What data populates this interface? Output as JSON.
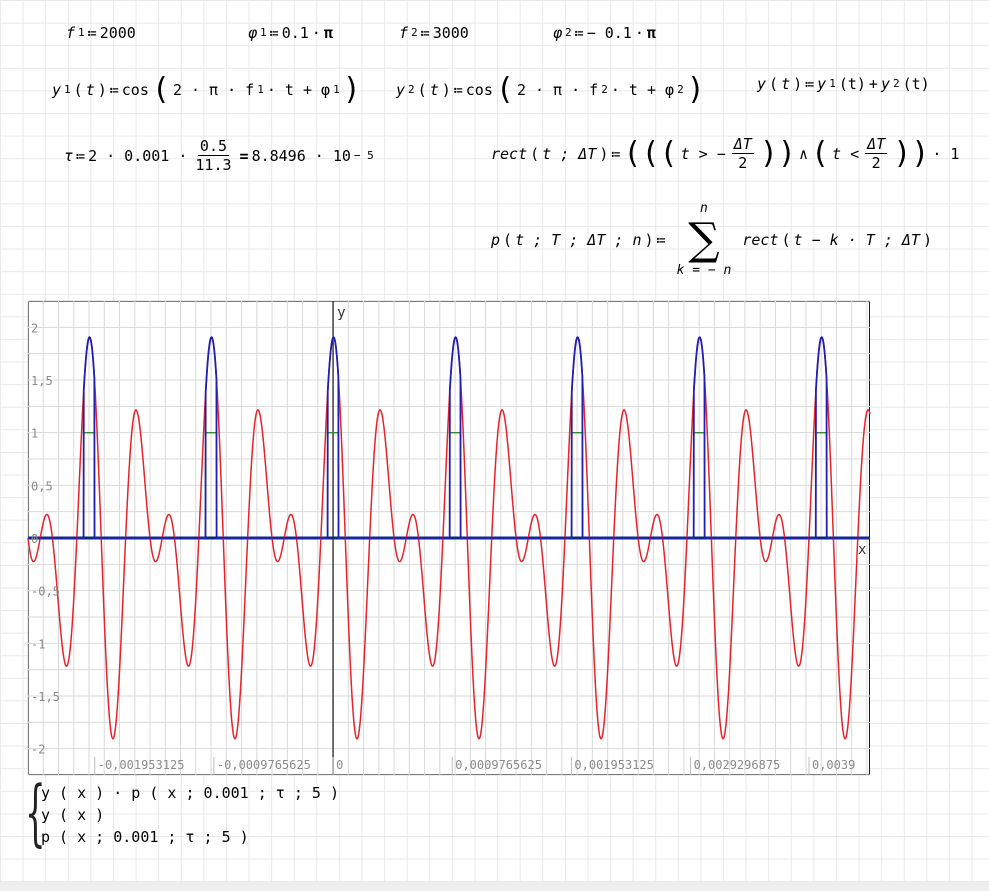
{
  "definitions": {
    "f1": {
      "name": "f",
      "sub": "1",
      "op": "≔",
      "value": "2000"
    },
    "phi1": {
      "name": "φ",
      "sub": "1",
      "op": "≔",
      "value": "0.1",
      "dot": "·",
      "pi": "π"
    },
    "f2": {
      "name": "f",
      "sub": "2",
      "op": "≔",
      "value": "3000"
    },
    "phi2": {
      "name": "φ",
      "sub": "2",
      "op": "≔",
      "value": "− 0.1",
      "dot": "·",
      "pi": "π"
    },
    "y1": {
      "lhs": "y",
      "sub": "1",
      "arg": "t",
      "op": "≔",
      "fn": "cos",
      "body": "2 · π · f",
      "fsub": "1",
      "mid": " · t + φ",
      "psub": "1"
    },
    "y2": {
      "lhs": "y",
      "sub": "2",
      "arg": "t",
      "op": "≔",
      "fn": "cos",
      "body": "2 · π · f",
      "fsub": "2",
      "mid": " · t + φ",
      "psub": "2"
    },
    "y": {
      "lhs": "y",
      "arg": "t",
      "op": "≔",
      "t1": "y",
      "t1sub": "1",
      "plus": "+",
      "t2": "y",
      "t2sub": "2"
    },
    "tau": {
      "name": "τ",
      "op": "≔",
      "prefix": "2 · 0.001 ·",
      "num": "0.5",
      "den": "11.3",
      "eq": "=",
      "result": "8.8496 · 10",
      "exp": "− 5"
    },
    "rect": {
      "name": "rect",
      "args": "t ; ΔT",
      "op": "≔",
      "gt": "t > −",
      "lt": "t <",
      "num": "ΔT",
      "den": "2",
      "and": "∧",
      "tail": "· 1"
    },
    "pulse": {
      "name": "p",
      "args": "t ; T ; ΔT ; n",
      "op": "≔",
      "upper": "n",
      "lower": "k = − n",
      "term": "rect",
      "termargs": "t − k · T ; ΔT"
    }
  },
  "plot": {
    "x_axis_name": "x",
    "y_axis_name": "y",
    "y_ticks": [
      "2",
      "1,5",
      "1",
      "0,5",
      "0",
      "-0,5",
      "-1",
      "-1,5",
      "-2"
    ],
    "x_ticks": [
      "-0,001953125",
      "-0,0009765625",
      "0",
      "0,0009765625",
      "0,001953125",
      "0,0029296875",
      "0,0039"
    ]
  },
  "legend": {
    "items": [
      "y ( x ) · p ( x ; 0.001 ; τ ; 5 )",
      "y ( x )",
      "p ( x ; 0.001 ; τ ; 5 )"
    ]
  },
  "colors": {
    "product": "#1f1fb4",
    "signal": "#e8222a",
    "pulse": "#2e8b2e",
    "zero_line": "#0b2a7a",
    "grid": "#d9d9d9"
  },
  "chart_data": {
    "type": "line",
    "title": "",
    "xlabel": "x",
    "ylabel": "y",
    "xlim": [
      -0.0025,
      0.0044
    ],
    "ylim": [
      -2.25,
      2.25
    ],
    "grid": true,
    "params": {
      "f1": 2000,
      "phi1_over_pi": 0.1,
      "f2": 3000,
      "phi2_over_pi": -0.1,
      "T": 0.001,
      "tau": 8.8496e-05,
      "n": 5
    },
    "series": [
      {
        "name": "y ( x ) · p ( x ; 0.001 ; τ ; 5 )",
        "expr": "y(x)*p(x;0.001;τ;5)"
      },
      {
        "name": "y ( x )",
        "expr": "cos(2π·2000·x+0.1π)+cos(2π·3000·x−0.1π)"
      },
      {
        "name": "p ( x ; 0.001 ; τ ; 5 )",
        "expr": "sum rect(x−k·0.001; τ), k=−5..5"
      }
    ]
  }
}
